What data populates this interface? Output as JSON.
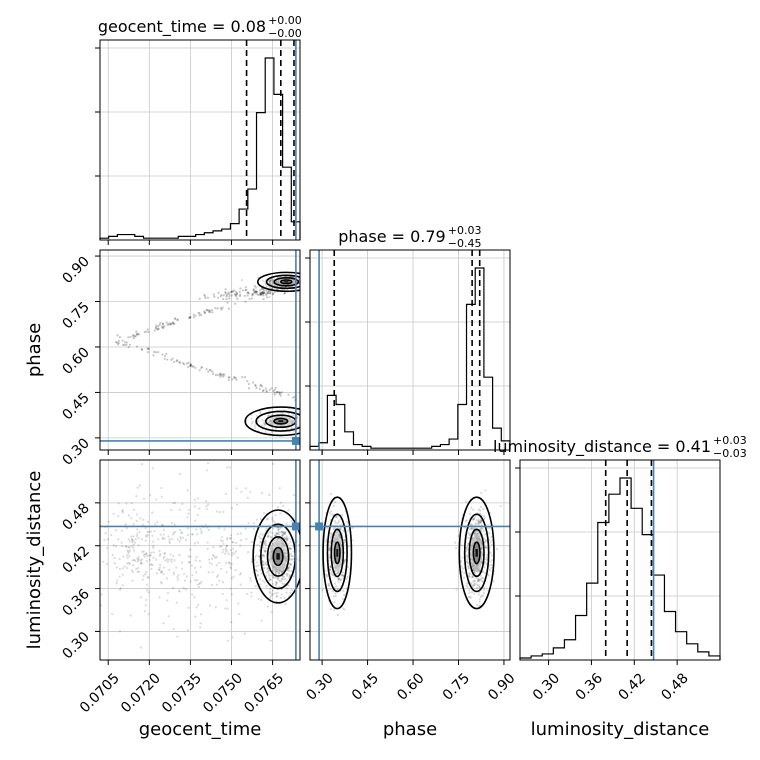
{
  "chart_data": {
    "type": "corner",
    "parameters": [
      {
        "name": "geocent_time",
        "label": "geocent_time",
        "range": [
          0.0702,
          0.0775
        ],
        "ticks": [
          0.0705,
          0.072,
          0.0735,
          0.075,
          0.0765
        ],
        "tick_labels": [
          "0.0705",
          "0.0720",
          "0.0735",
          "0.0750",
          "0.0765"
        ],
        "title_base": "geocent_time = 0.08",
        "title_plus": "+0.00",
        "title_minus": "−0.00",
        "quantiles": [
          0.07555,
          0.0768,
          0.07728
        ],
        "truth": 0.07735,
        "hist": [
          1,
          2,
          3,
          3,
          2,
          1,
          1,
          1,
          1,
          2,
          2,
          3,
          4,
          5,
          6,
          9,
          17,
          28,
          70,
          100,
          80,
          40,
          10
        ]
      },
      {
        "name": "phase",
        "label": "phase",
        "range": [
          0.26,
          0.92
        ],
        "ticks": [
          0.3,
          0.45,
          0.6,
          0.75,
          0.9
        ],
        "tick_labels": [
          "0.30",
          "0.45",
          "0.60",
          "0.75",
          "0.90"
        ],
        "title_base": "phase = 0.79",
        "title_plus": "+0.03",
        "title_minus": "−0.45",
        "quantiles": [
          0.34,
          0.795,
          0.82
        ],
        "truth": 0.29,
        "hist": [
          2,
          4,
          30,
          25,
          10,
          3,
          2,
          1,
          1,
          1,
          1,
          1,
          1,
          1,
          2,
          3,
          6,
          25,
          80,
          100,
          40,
          12,
          5
        ]
      },
      {
        "name": "luminosity_distance",
        "label": "luminosity_distance",
        "range": [
          0.26,
          0.54
        ],
        "ticks": [
          0.3,
          0.36,
          0.42,
          0.48
        ],
        "tick_labels": [
          "0.30",
          "0.36",
          "0.42",
          "0.48"
        ],
        "title_base": "luminosity_distance = 0.41",
        "title_plus": "+0.03",
        "title_minus": "−0.03",
        "quantiles": [
          0.38,
          0.41,
          0.444
        ],
        "truth": 0.447,
        "hist": [
          1,
          2,
          3,
          6,
          10,
          22,
          38,
          68,
          82,
          90,
          75,
          62,
          42,
          24,
          14,
          8,
          4,
          2
        ]
      }
    ],
    "ylabels": [
      "phase",
      "luminosity_distance"
    ],
    "contour_levels": 4,
    "grid": true,
    "truth_color": "#4682b4"
  }
}
